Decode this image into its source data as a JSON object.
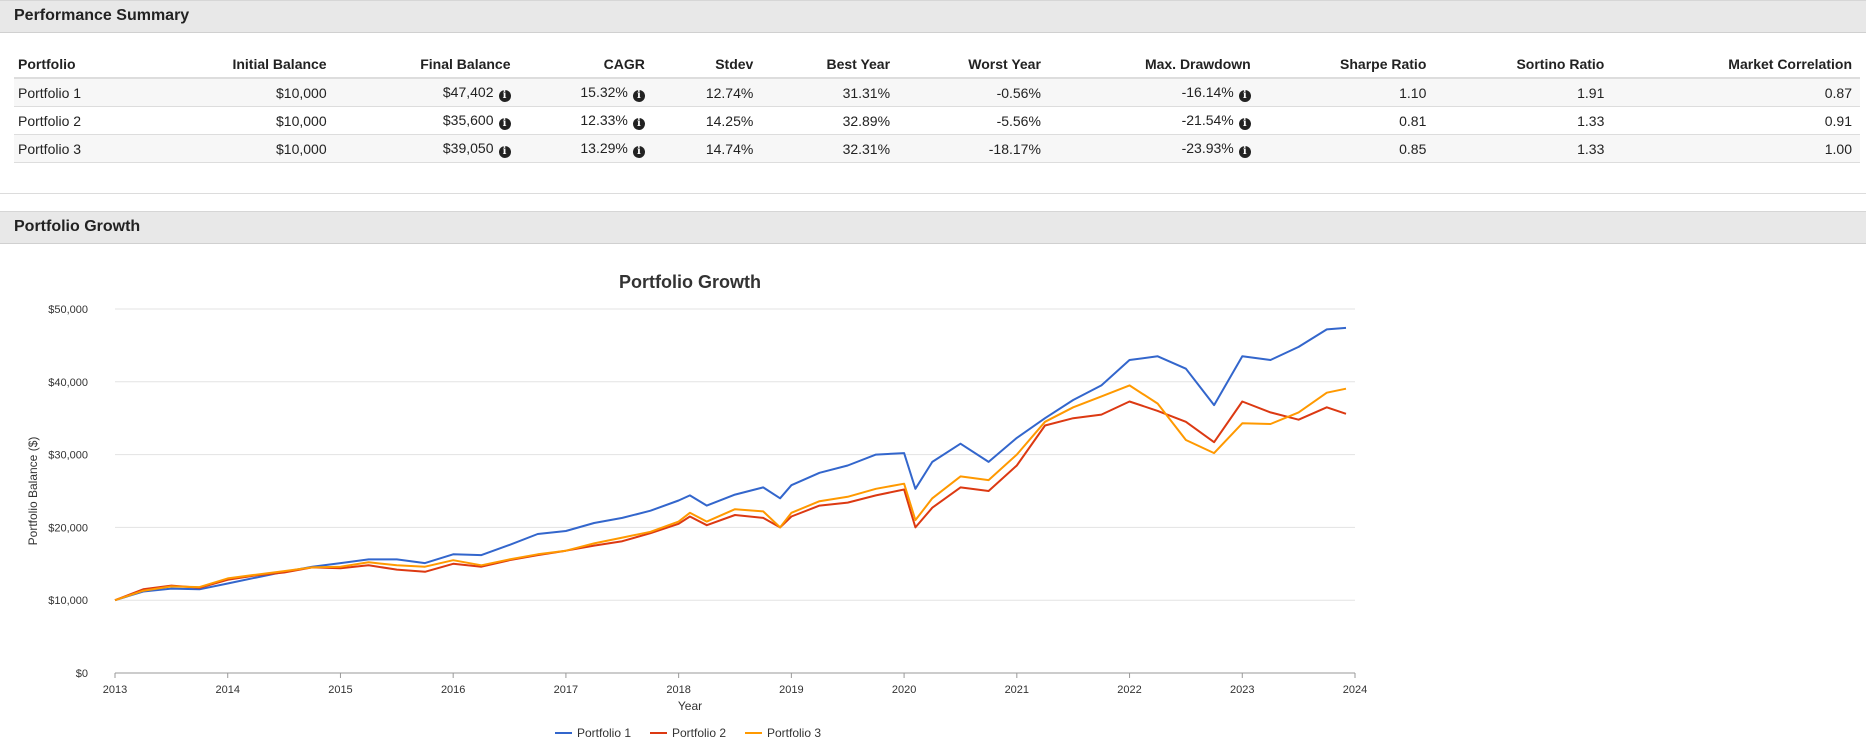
{
  "summary": {
    "title": "Performance Summary",
    "columns": [
      "Portfolio",
      "Initial Balance",
      "Final Balance",
      "CAGR",
      "Stdev",
      "Best Year",
      "Worst Year",
      "Max. Drawdown",
      "Sharpe Ratio",
      "Sortino Ratio",
      "Market Correlation"
    ],
    "rows": [
      {
        "portfolio": "Portfolio 1",
        "initial": "$10,000",
        "final": "$47,402",
        "cagr": "15.32%",
        "stdev": "12.74%",
        "best": "31.31%",
        "worst": "-0.56%",
        "drawdown": "-16.14%",
        "sharpe": "1.10",
        "sortino": "1.91",
        "correlation": "0.87"
      },
      {
        "portfolio": "Portfolio 2",
        "initial": "$10,000",
        "final": "$35,600",
        "cagr": "12.33%",
        "stdev": "14.25%",
        "best": "32.89%",
        "worst": "-5.56%",
        "drawdown": "-21.54%",
        "sharpe": "0.81",
        "sortino": "1.33",
        "correlation": "0.91"
      },
      {
        "portfolio": "Portfolio 3",
        "initial": "$10,000",
        "final": "$39,050",
        "cagr": "13.29%",
        "stdev": "14.74%",
        "best": "32.31%",
        "worst": "-18.17%",
        "drawdown": "-23.93%",
        "sharpe": "0.85",
        "sortino": "1.33",
        "correlation": "1.00"
      }
    ],
    "info_glyph": "i"
  },
  "growth": {
    "title": "Portfolio Growth"
  },
  "chart_data": {
    "type": "line",
    "title": "Portfolio Growth",
    "xlabel": "Year",
    "ylabel": "Portfolio Balance ($)",
    "xlim": [
      2013,
      2024
    ],
    "ylim": [
      0,
      50000
    ],
    "x_ticks": [
      "2013",
      "2014",
      "2015",
      "2016",
      "2017",
      "2018",
      "2019",
      "2020",
      "2021",
      "2022",
      "2023",
      "2024"
    ],
    "y_ticks": [
      "$0",
      "$10,000",
      "$20,000",
      "$30,000",
      "$40,000",
      "$50,000"
    ],
    "legend_position": "bottom",
    "series": [
      {
        "name": "Portfolio 1",
        "color": "#3366cc",
        "x": [
          2013.0,
          2013.25,
          2013.5,
          2013.75,
          2014.0,
          2014.25,
          2014.5,
          2014.75,
          2015.0,
          2015.25,
          2015.5,
          2015.75,
          2016.0,
          2016.25,
          2016.5,
          2016.75,
          2017.0,
          2017.25,
          2017.5,
          2017.75,
          2018.0,
          2018.1,
          2018.25,
          2018.5,
          2018.75,
          2018.9,
          2019.0,
          2019.25,
          2019.5,
          2019.75,
          2020.0,
          2020.1,
          2020.25,
          2020.5,
          2020.75,
          2021.0,
          2021.25,
          2021.5,
          2021.75,
          2022.0,
          2022.25,
          2022.5,
          2022.75,
          2023.0,
          2023.25,
          2023.5,
          2023.75,
          2023.92
        ],
        "y": [
          10000,
          11200,
          11600,
          11500,
          12300,
          13100,
          13900,
          14600,
          15100,
          15600,
          15600,
          15100,
          16300,
          16200,
          17600,
          19100,
          19500,
          20600,
          21300,
          22300,
          23700,
          24400,
          23000,
          24500,
          25500,
          24000,
          25800,
          27500,
          28500,
          30000,
          30200,
          25300,
          29000,
          31500,
          29000,
          32300,
          35000,
          37500,
          39500,
          43000,
          43500,
          41800,
          36800,
          43500,
          43000,
          44800,
          47200,
          47400
        ]
      },
      {
        "name": "Portfolio 2",
        "color": "#dc3912",
        "x": [
          2013.0,
          2013.25,
          2013.5,
          2013.75,
          2014.0,
          2014.25,
          2014.5,
          2014.75,
          2015.0,
          2015.25,
          2015.5,
          2015.75,
          2016.0,
          2016.25,
          2016.5,
          2016.75,
          2017.0,
          2017.25,
          2017.5,
          2017.75,
          2018.0,
          2018.1,
          2018.25,
          2018.5,
          2018.75,
          2018.9,
          2019.0,
          2019.25,
          2019.5,
          2019.75,
          2020.0,
          2020.1,
          2020.25,
          2020.5,
          2020.75,
          2021.0,
          2021.25,
          2021.5,
          2021.75,
          2022.0,
          2022.25,
          2022.5,
          2022.75,
          2023.0,
          2023.25,
          2023.5,
          2023.75,
          2023.92
        ],
        "y": [
          10000,
          11500,
          12000,
          11700,
          12800,
          13400,
          13800,
          14500,
          14400,
          14800,
          14200,
          13900,
          15000,
          14600,
          15500,
          16200,
          16800,
          17500,
          18100,
          19200,
          20500,
          21500,
          20300,
          21700,
          21300,
          20000,
          21500,
          23000,
          23400,
          24400,
          25200,
          20000,
          22700,
          25500,
          25000,
          28500,
          34000,
          35000,
          35500,
          37300,
          36000,
          34500,
          31700,
          37300,
          35800,
          34800,
          36500,
          35600
        ]
      },
      {
        "name": "Portfolio 3",
        "color": "#ff9900",
        "x": [
          2013.0,
          2013.25,
          2013.5,
          2013.75,
          2014.0,
          2014.25,
          2014.5,
          2014.75,
          2015.0,
          2015.25,
          2015.5,
          2015.75,
          2016.0,
          2016.25,
          2016.5,
          2016.75,
          2017.0,
          2017.25,
          2017.5,
          2017.75,
          2018.0,
          2018.1,
          2018.25,
          2018.5,
          2018.75,
          2018.9,
          2019.0,
          2019.25,
          2019.5,
          2019.75,
          2020.0,
          2020.1,
          2020.25,
          2020.5,
          2020.75,
          2021.0,
          2021.25,
          2021.5,
          2021.75,
          2022.0,
          2022.25,
          2022.5,
          2022.75,
          2023.0,
          2023.25,
          2023.5,
          2023.75,
          2023.92
        ],
        "y": [
          10000,
          11300,
          11900,
          11800,
          13000,
          13500,
          14000,
          14500,
          14600,
          15200,
          14800,
          14600,
          15500,
          14800,
          15600,
          16300,
          16800,
          17800,
          18600,
          19400,
          20800,
          22000,
          20800,
          22500,
          22200,
          20000,
          22000,
          23600,
          24200,
          25300,
          26000,
          21000,
          24000,
          27000,
          26500,
          30000,
          34500,
          36500,
          38000,
          39500,
          37000,
          32000,
          30200,
          34300,
          34200,
          35800,
          38500,
          39050
        ]
      }
    ]
  }
}
